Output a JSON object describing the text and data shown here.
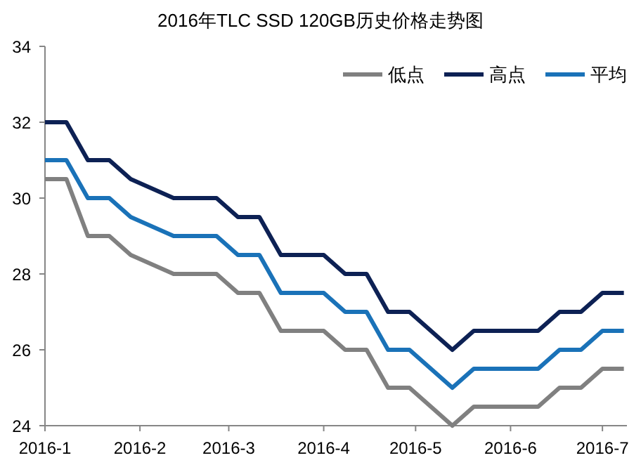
{
  "chart_data": {
    "type": "line",
    "title": "2016年TLC SSD 120GB历史价格走势图",
    "x": [
      "2016-01-01",
      "2016-01-08",
      "2016-01-15",
      "2016-01-22",
      "2016-01-29",
      "2016-02-05",
      "2016-02-12",
      "2016-02-19",
      "2016-02-26",
      "2016-03-04",
      "2016-03-11",
      "2016-03-18",
      "2016-03-25",
      "2016-04-01",
      "2016-04-08",
      "2016-04-15",
      "2016-04-22",
      "2016-04-29",
      "2016-05-06",
      "2016-05-13",
      "2016-05-20",
      "2016-05-27",
      "2016-06-03",
      "2016-06-10",
      "2016-06-17",
      "2016-06-24",
      "2016-07-01",
      "2016-07-08"
    ],
    "series": [
      {
        "name": "低点",
        "color": "#808080",
        "values": [
          30.5,
          30.5,
          29,
          29,
          28.5,
          28.25,
          28,
          28,
          28,
          27.5,
          27.5,
          26.5,
          26.5,
          26.5,
          26,
          26,
          25,
          25,
          24.5,
          24,
          24.5,
          24.5,
          24.5,
          24.5,
          25,
          25,
          25.5,
          25.5
        ]
      },
      {
        "name": "高点",
        "color": "#0d2154",
        "values": [
          32,
          32,
          31,
          31,
          30.5,
          30.25,
          30,
          30,
          30,
          29.5,
          29.5,
          28.5,
          28.5,
          28.5,
          28,
          28,
          27,
          27,
          26.5,
          26,
          26.5,
          26.5,
          26.5,
          26.5,
          27,
          27,
          27.5,
          27.5
        ]
      },
      {
        "name": "平均",
        "color": "#1a72b8",
        "values": [
          31,
          31,
          30,
          30,
          29.5,
          29.25,
          29,
          29,
          29,
          28.5,
          28.5,
          27.5,
          27.5,
          27.5,
          27,
          27,
          26,
          26,
          25.5,
          25,
          25.5,
          25.5,
          25.5,
          25.5,
          26,
          26,
          26.5,
          26.5
        ]
      }
    ],
    "xlim": [
      "2016-01-01",
      "2016-07-09"
    ],
    "xticks": [
      {
        "value": "2016-01-01",
        "label": "2016-1"
      },
      {
        "value": "2016-02-01",
        "label": "2016-2"
      },
      {
        "value": "2016-03-01",
        "label": "2016-3"
      },
      {
        "value": "2016-04-01",
        "label": "2016-4"
      },
      {
        "value": "2016-05-01",
        "label": "2016-5"
      },
      {
        "value": "2016-06-01",
        "label": "2016-6"
      },
      {
        "value": "2016-07-01",
        "label": "2016-7"
      }
    ],
    "ylim": [
      24,
      34
    ],
    "yticks": [
      24,
      26,
      28,
      30,
      32,
      34
    ],
    "legend": "top right",
    "marker": "none",
    "line_style": "solid",
    "grid": false
  }
}
